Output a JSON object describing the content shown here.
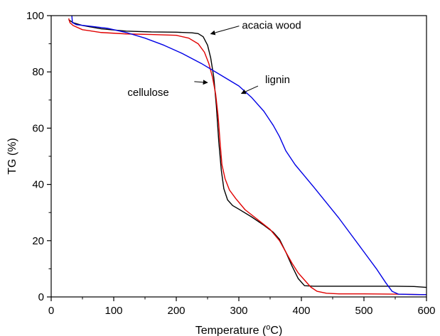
{
  "chart_data": {
    "type": "line",
    "title": "",
    "xlabel": "Temperature (",
    "xlabel_sup": "o",
    "xlabel_tail": "C)",
    "ylabel": "TG (%)",
    "xlim": [
      0,
      600
    ],
    "ylim": [
      0,
      100
    ],
    "xticks": [
      0,
      100,
      200,
      300,
      400,
      500,
      600
    ],
    "yticks": [
      0,
      20,
      40,
      60,
      80,
      100
    ],
    "xtick_labels": [
      "0",
      "100",
      "200",
      "300",
      "400",
      "500",
      "600"
    ],
    "ytick_labels": [
      "0",
      "20",
      "40",
      "60",
      "80",
      "100"
    ],
    "grid": false,
    "legend": "none",
    "series": [
      {
        "name": "acacia wood",
        "color": "#000000",
        "points": [
          [
            28,
            98.5
          ],
          [
            35,
            97.5
          ],
          [
            50,
            96.5
          ],
          [
            80,
            95.3
          ],
          [
            120,
            94.5
          ],
          [
            160,
            94.2
          ],
          [
            200,
            94.1
          ],
          [
            225,
            93.9
          ],
          [
            235,
            93.6
          ],
          [
            243,
            92.5
          ],
          [
            250,
            89.5
          ],
          [
            255,
            85
          ],
          [
            260,
            78
          ],
          [
            264,
            68
          ],
          [
            268,
            55
          ],
          [
            272,
            45
          ],
          [
            276,
            38.5
          ],
          [
            282,
            34.5
          ],
          [
            290,
            32.5
          ],
          [
            300,
            31.2
          ],
          [
            320,
            28.5
          ],
          [
            340,
            25.5
          ],
          [
            355,
            23
          ],
          [
            365,
            20.5
          ],
          [
            375,
            16
          ],
          [
            385,
            11
          ],
          [
            395,
            6.5
          ],
          [
            405,
            4
          ],
          [
            420,
            3.8
          ],
          [
            450,
            3.8
          ],
          [
            500,
            3.8
          ],
          [
            550,
            3.8
          ],
          [
            580,
            3.7
          ],
          [
            600,
            3.4
          ]
        ]
      },
      {
        "name": "cellulose",
        "color": "#e00000",
        "points": [
          [
            28,
            99
          ],
          [
            30,
            97.5
          ],
          [
            35,
            96.5
          ],
          [
            50,
            95
          ],
          [
            80,
            94
          ],
          [
            120,
            93.5
          ],
          [
            160,
            93.3
          ],
          [
            200,
            93
          ],
          [
            220,
            92
          ],
          [
            235,
            90
          ],
          [
            245,
            87
          ],
          [
            252,
            83
          ],
          [
            258,
            78
          ],
          [
            263,
            72
          ],
          [
            267,
            64
          ],
          [
            270,
            55
          ],
          [
            273,
            47
          ],
          [
            278,
            42
          ],
          [
            285,
            38
          ],
          [
            295,
            35
          ],
          [
            310,
            31
          ],
          [
            330,
            27.5
          ],
          [
            350,
            24
          ],
          [
            365,
            20
          ],
          [
            375,
            16
          ],
          [
            385,
            12
          ],
          [
            395,
            8.5
          ],
          [
            405,
            6
          ],
          [
            415,
            3.5
          ],
          [
            425,
            2
          ],
          [
            440,
            1.3
          ],
          [
            460,
            1.1
          ],
          [
            500,
            1.1
          ],
          [
            550,
            1
          ],
          [
            600,
            0.8
          ]
        ]
      },
      {
        "name": "lignin",
        "color": "#0000e6",
        "points": [
          [
            33,
            100
          ],
          [
            34,
            97.5
          ],
          [
            40,
            96.8
          ],
          [
            60,
            96.3
          ],
          [
            90,
            95.5
          ],
          [
            120,
            94
          ],
          [
            150,
            92
          ],
          [
            180,
            89.5
          ],
          [
            210,
            86.5
          ],
          [
            240,
            83
          ],
          [
            270,
            79
          ],
          [
            300,
            75
          ],
          [
            320,
            71
          ],
          [
            340,
            66
          ],
          [
            355,
            61
          ],
          [
            365,
            57
          ],
          [
            375,
            52
          ],
          [
            390,
            47
          ],
          [
            405,
            43
          ],
          [
            420,
            39
          ],
          [
            440,
            33.5
          ],
          [
            460,
            28
          ],
          [
            480,
            22
          ],
          [
            500,
            16
          ],
          [
            520,
            10
          ],
          [
            535,
            5
          ],
          [
            545,
            2
          ],
          [
            555,
            1
          ],
          [
            570,
            0.9
          ],
          [
            600,
            0.8
          ]
        ]
      }
    ],
    "annotations": [
      {
        "text": "acacia wood",
        "series": "acacia wood",
        "tip": [
          255,
          93.5
        ],
        "label_at": [
          305,
          95.3
        ]
      },
      {
        "text": "cellulose",
        "series": "cellulose",
        "tip": [
          250,
          76.2
        ],
        "label_at": [
          122,
          71.5
        ]
      },
      {
        "text": "lignin",
        "series": "lignin",
        "tip": [
          304,
          72.3
        ],
        "label_at": [
          342,
          76
        ]
      }
    ]
  }
}
